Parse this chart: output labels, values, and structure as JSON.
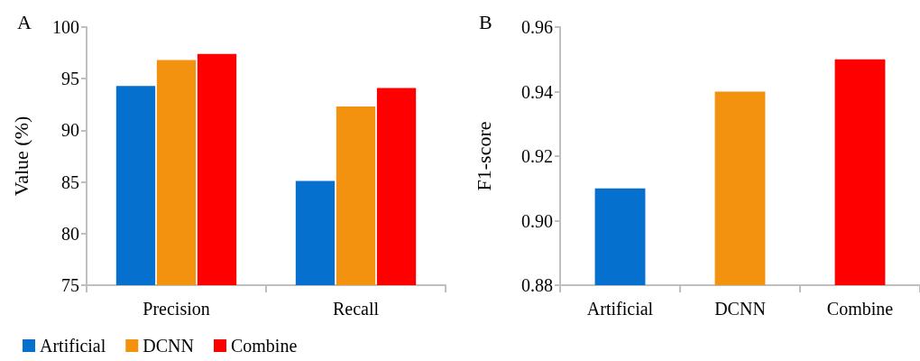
{
  "chart_data": [
    {
      "type": "bar",
      "title": "A",
      "ylabel": "Value (%)",
      "categories": [
        "Precision",
        "Recall"
      ],
      "series": [
        {
          "name": "Artificial",
          "color": "#0570cd",
          "values": [
            94.3,
            85.1
          ]
        },
        {
          "name": "DCNN",
          "color": "#f3920e",
          "values": [
            96.8,
            92.3
          ]
        },
        {
          "name": "Combine",
          "color": "#fe0000",
          "values": [
            97.4,
            94.1
          ]
        }
      ],
      "ylim": [
        75,
        100
      ],
      "yticks": [
        75,
        80,
        85,
        90,
        95,
        100
      ],
      "grid": false,
      "legend": "bottom"
    },
    {
      "type": "bar",
      "title": "B",
      "ylabel": "F1-score",
      "categories": [
        "Artificial",
        "DCNN",
        "Combine"
      ],
      "values": [
        0.91,
        0.94,
        0.95
      ],
      "colors": [
        "#0570cd",
        "#f3920e",
        "#fe0000"
      ],
      "ylim": [
        0.88,
        0.96
      ],
      "yticks": [
        0.88,
        {
          "value": 0.9,
          "label": "0.90"
        },
        0.92,
        0.94,
        0.96
      ],
      "grid": false,
      "legend": false
    }
  ]
}
